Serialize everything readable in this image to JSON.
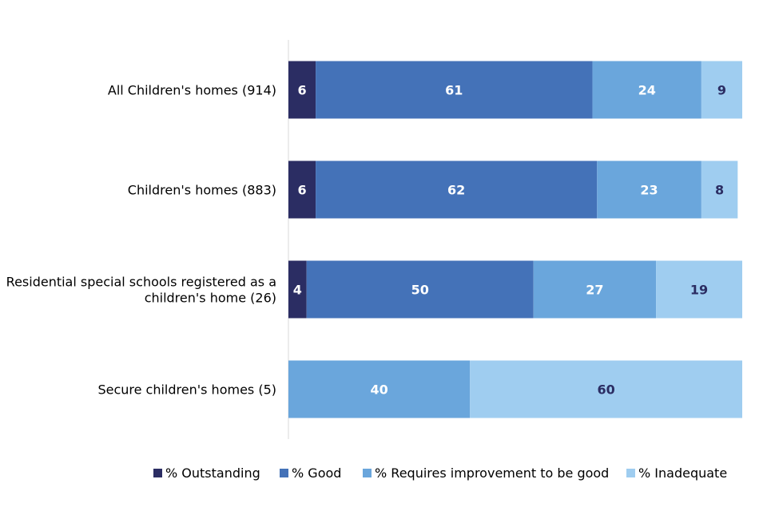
{
  "chart_data": {
    "type": "bar",
    "orientation": "horizontal",
    "stacked": true,
    "categories": [
      [
        "All Children's homes (914)"
      ],
      [
        "Children's homes (883)"
      ],
      [
        "Residential special schools registered as a",
        "children's home (26)"
      ],
      [
        "Secure children's homes (5)"
      ]
    ],
    "series": [
      {
        "name": "% Outstanding",
        "color": "#2b2d63",
        "label_color": "#ffffff",
        "values": [
          6,
          6,
          4,
          0
        ]
      },
      {
        "name": "% Good",
        "color": "#4472b8",
        "label_color": "#ffffff",
        "values": [
          61,
          62,
          50,
          0
        ]
      },
      {
        "name": "% Requires improvement to be good",
        "color": "#6aa6dc",
        "label_color": "#ffffff",
        "values": [
          24,
          23,
          27,
          40
        ]
      },
      {
        "name": "% Inadequate",
        "color": "#9fcdf0",
        "label_color": "#2b2d63",
        "values": [
          9,
          8,
          19,
          60
        ]
      }
    ],
    "xlim": [
      0,
      100
    ],
    "grid": false,
    "legend": "bottom",
    "title": "",
    "xlabel": "",
    "ylabel": ""
  }
}
